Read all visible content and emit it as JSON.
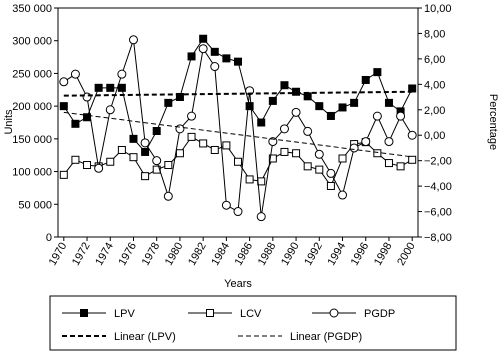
{
  "chart_data": {
    "type": "line",
    "xlabel": "Years",
    "ylabel": "Units",
    "y2label": "Percentage",
    "x": [
      1970,
      1971,
      1972,
      1973,
      1974,
      1975,
      1976,
      1977,
      1978,
      1979,
      1980,
      1981,
      1982,
      1983,
      1984,
      1985,
      1986,
      1987,
      1988,
      1989,
      1990,
      1991,
      1992,
      1993,
      1994,
      1995,
      1996,
      1997,
      1998,
      1999,
      2000
    ],
    "xlim": [
      1969.5,
      2000.5
    ],
    "xticks": [
      1970,
      1972,
      1974,
      1976,
      1978,
      1980,
      1982,
      1984,
      1986,
      1988,
      1990,
      1992,
      1994,
      1996,
      1998,
      2000
    ],
    "ylim": [
      0,
      350000
    ],
    "yticks": [
      {
        "value": 0,
        "label": "0"
      },
      {
        "value": 50000,
        "label": "50 000"
      },
      {
        "value": 100000,
        "label": "100 000"
      },
      {
        "value": 150000,
        "label": "150 000"
      },
      {
        "value": 200000,
        "label": "200 000"
      },
      {
        "value": 250000,
        "label": "250 000"
      },
      {
        "value": 300000,
        "label": "300 000"
      },
      {
        "value": 350000,
        "label": "350 000"
      }
    ],
    "y2lim": [
      -8,
      10
    ],
    "y2ticks": [
      {
        "value": -8,
        "label": "−8,00"
      },
      {
        "value": -6,
        "label": "−6,00"
      },
      {
        "value": -4,
        "label": "−4,00"
      },
      {
        "value": -2,
        "label": "−2,00"
      },
      {
        "value": 0,
        "label": "0,00"
      },
      {
        "value": 2,
        "label": "2,00"
      },
      {
        "value": 4,
        "label": "4,00"
      },
      {
        "value": 6,
        "label": "6,00"
      },
      {
        "value": 8,
        "label": "8,00"
      },
      {
        "value": 10,
        "label": "10,00"
      }
    ],
    "series": [
      {
        "name": "LPV",
        "color": "#000000",
        "marker": "square",
        "marker_fill": "#000000",
        "dashed": false,
        "values": [
          200000,
          173000,
          183000,
          228000,
          228000,
          228000,
          150000,
          130000,
          162000,
          205000,
          214000,
          276000,
          303000,
          283000,
          273000,
          268000,
          200000,
          175000,
          208000,
          232000,
          222000,
          215000,
          200000,
          185000,
          198000,
          205000,
          240000,
          252000,
          205000,
          192000,
          227000
        ]
      },
      {
        "name": "LCV",
        "color": "#000000",
        "marker": "square",
        "marker_fill": "#ffffff",
        "dashed": false,
        "values": [
          95000,
          118000,
          110000,
          108000,
          115000,
          133000,
          122000,
          93000,
          103000,
          110000,
          128000,
          153000,
          143000,
          133000,
          140000,
          115000,
          88000,
          85000,
          120000,
          130000,
          128000,
          108000,
          103000,
          78000,
          120000,
          142000,
          145000,
          128000,
          113000,
          108000,
          118000
        ]
      },
      {
        "name": "PGDP",
        "color": "#000000",
        "marker": "circle",
        "marker_fill": "#ffffff",
        "dashed": false,
        "axis": "y2",
        "values": [
          4.2,
          4.8,
          3.0,
          -2.6,
          2.0,
          4.8,
          7.5,
          -0.6,
          -2.0,
          -4.8,
          0.5,
          1.5,
          6.8,
          5.4,
          -5.5,
          -6.0,
          3.5,
          -6.4,
          -0.5,
          0.5,
          1.8,
          0.3,
          -1.5,
          -3.0,
          -4.7,
          -1.0,
          -0.5,
          1.5,
          -0.5,
          1.5,
          0.0
        ]
      },
      {
        "name": "Linear (LPV)",
        "color": "#000000",
        "marker": "none",
        "dashed": true,
        "width": 2,
        "x": [
          1970,
          2000
        ],
        "values": [
          216000,
          222000
        ]
      },
      {
        "name": "Linear (PGDP)",
        "color": "#000000",
        "marker": "none",
        "dashed": true,
        "width": 1,
        "axis": "y2",
        "x": [
          1970,
          2000
        ],
        "values": [
          1.8,
          -1.7
        ]
      }
    ]
  }
}
